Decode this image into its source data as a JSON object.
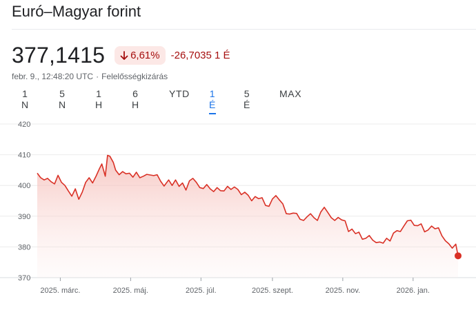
{
  "header": {
    "title": "Euró–Magyar forint",
    "price": "377,1415",
    "percent_change": "6,61%",
    "abs_change": "-26,7035 1 É",
    "timestamp": "febr. 9., 12:48:20 UTC",
    "separator": "·",
    "disclaimer": "Felelősségkizárás"
  },
  "colors": {
    "line": "#d93025",
    "negative_text": "#a50e0e",
    "badge_bg": "#fce8e6",
    "active_tab": "#1a73e8"
  },
  "tabs": [
    {
      "label": "1 N",
      "active": false
    },
    {
      "label": "5 N",
      "active": false
    },
    {
      "label": "1 H",
      "active": false
    },
    {
      "label": "6 H",
      "active": false
    },
    {
      "label": "YTD",
      "active": false
    },
    {
      "label": "1 É",
      "active": true
    },
    {
      "label": "5 É",
      "active": false
    },
    {
      "label": "MAX",
      "active": false
    }
  ],
  "chart_data": {
    "type": "area",
    "ylim": [
      370,
      420
    ],
    "yticks": [
      370,
      380,
      390,
      400,
      410,
      420
    ],
    "xlim": [
      "2025-02-09",
      "2026-02-09"
    ],
    "xticks": [
      {
        "date": "2025-03-01",
        "label": "2025. márc."
      },
      {
        "date": "2025-05-01",
        "label": "2025. máj."
      },
      {
        "date": "2025-07-01",
        "label": "2025. júl."
      },
      {
        "date": "2025-09-01",
        "label": "2025. szept."
      },
      {
        "date": "2025-11-01",
        "label": "2025. nov."
      },
      {
        "date": "2026-01-01",
        "label": "2026. jan."
      }
    ],
    "grid": true,
    "series": [
      {
        "x": [
          "2025-02-09",
          "2025-02-12",
          "2025-02-15",
          "2025-02-18",
          "2025-02-21",
          "2025-02-24",
          "2025-02-27",
          "2025-03-02",
          "2025-03-05",
          "2025-03-08",
          "2025-03-11",
          "2025-03-14",
          "2025-03-17",
          "2025-03-20",
          "2025-03-23",
          "2025-03-26",
          "2025-03-29",
          "2025-04-01",
          "2025-04-04",
          "2025-04-06",
          "2025-04-09",
          "2025-04-11",
          "2025-04-13",
          "2025-04-16",
          "2025-04-18",
          "2025-04-21",
          "2025-04-24",
          "2025-04-27",
          "2025-04-30",
          "2025-05-03",
          "2025-05-06",
          "2025-05-09",
          "2025-05-12",
          "2025-05-15",
          "2025-05-18",
          "2025-05-21",
          "2025-05-24",
          "2025-05-27",
          "2025-05-30",
          "2025-06-03",
          "2025-06-06",
          "2025-06-09",
          "2025-06-12",
          "2025-06-15",
          "2025-06-18",
          "2025-06-21",
          "2025-06-24",
          "2025-06-27",
          "2025-06-30",
          "2025-07-03",
          "2025-07-06",
          "2025-07-09",
          "2025-07-12",
          "2025-07-15",
          "2025-07-18",
          "2025-07-21",
          "2025-07-24",
          "2025-07-27",
          "2025-07-30",
          "2025-08-02",
          "2025-08-05",
          "2025-08-08",
          "2025-08-11",
          "2025-08-14",
          "2025-08-17",
          "2025-08-20",
          "2025-08-23",
          "2025-08-26",
          "2025-08-29",
          "2025-09-01",
          "2025-09-04",
          "2025-09-07",
          "2025-09-10",
          "2025-09-13",
          "2025-09-16",
          "2025-09-19",
          "2025-09-22",
          "2025-09-25",
          "2025-09-28",
          "2025-10-01",
          "2025-10-04",
          "2025-10-07",
          "2025-10-10",
          "2025-10-13",
          "2025-10-16",
          "2025-10-19",
          "2025-10-22",
          "2025-10-25",
          "2025-10-28",
          "2025-10-31",
          "2025-11-03",
          "2025-11-06",
          "2025-11-09",
          "2025-11-12",
          "2025-11-15",
          "2025-11-18",
          "2025-11-21",
          "2025-11-24",
          "2025-11-27",
          "2025-11-30",
          "2025-12-03",
          "2025-12-06",
          "2025-12-09",
          "2025-12-12",
          "2025-12-15",
          "2025-12-18",
          "2025-12-21",
          "2025-12-24",
          "2025-12-27",
          "2025-12-30",
          "2026-01-02",
          "2026-01-05",
          "2026-01-08",
          "2026-01-11",
          "2026-01-14",
          "2026-01-17",
          "2026-01-20",
          "2026-01-23",
          "2026-01-26",
          "2026-01-29",
          "2026-02-01",
          "2026-02-04",
          "2026-02-07",
          "2026-02-09"
        ],
        "y": [
          404.0,
          402.5,
          401.8,
          402.3,
          401.2,
          400.5,
          403.3,
          401.0,
          400.0,
          398.2,
          396.5,
          398.9,
          395.5,
          397.8,
          401.0,
          402.5,
          400.8,
          403.0,
          405.5,
          407.0,
          403.0,
          409.8,
          409.5,
          407.5,
          405.0,
          403.5,
          404.5,
          403.8,
          404.0,
          402.7,
          404.3,
          402.5,
          403.0,
          403.6,
          403.4,
          403.2,
          403.5,
          401.4,
          399.8,
          401.8,
          400.0,
          401.8,
          399.7,
          400.8,
          398.5,
          401.5,
          402.3,
          401.0,
          399.3,
          399.0,
          400.3,
          398.9,
          398.0,
          399.3,
          398.3,
          398.2,
          399.7,
          398.7,
          399.5,
          398.7,
          397.0,
          397.8,
          396.8,
          395.0,
          396.4,
          395.7,
          396.0,
          393.5,
          393.2,
          395.6,
          396.7,
          395.3,
          394.0,
          390.8,
          390.7,
          391.0,
          390.9,
          389.0,
          388.6,
          389.8,
          390.8,
          389.5,
          388.6,
          391.4,
          392.9,
          391.2,
          389.5,
          388.6,
          389.6,
          388.8,
          388.5,
          385.0,
          385.8,
          384.3,
          384.8,
          382.5,
          382.8,
          383.7,
          382.2,
          381.4,
          381.6,
          381.2,
          382.8,
          381.9,
          384.5,
          385.3,
          385.0,
          386.8,
          388.5,
          388.7,
          387.0,
          386.9,
          387.5,
          384.9,
          385.5,
          386.8,
          385.9,
          386.2,
          383.6,
          382.0,
          381.0,
          379.6,
          380.9,
          377.1
        ]
      }
    ]
  }
}
